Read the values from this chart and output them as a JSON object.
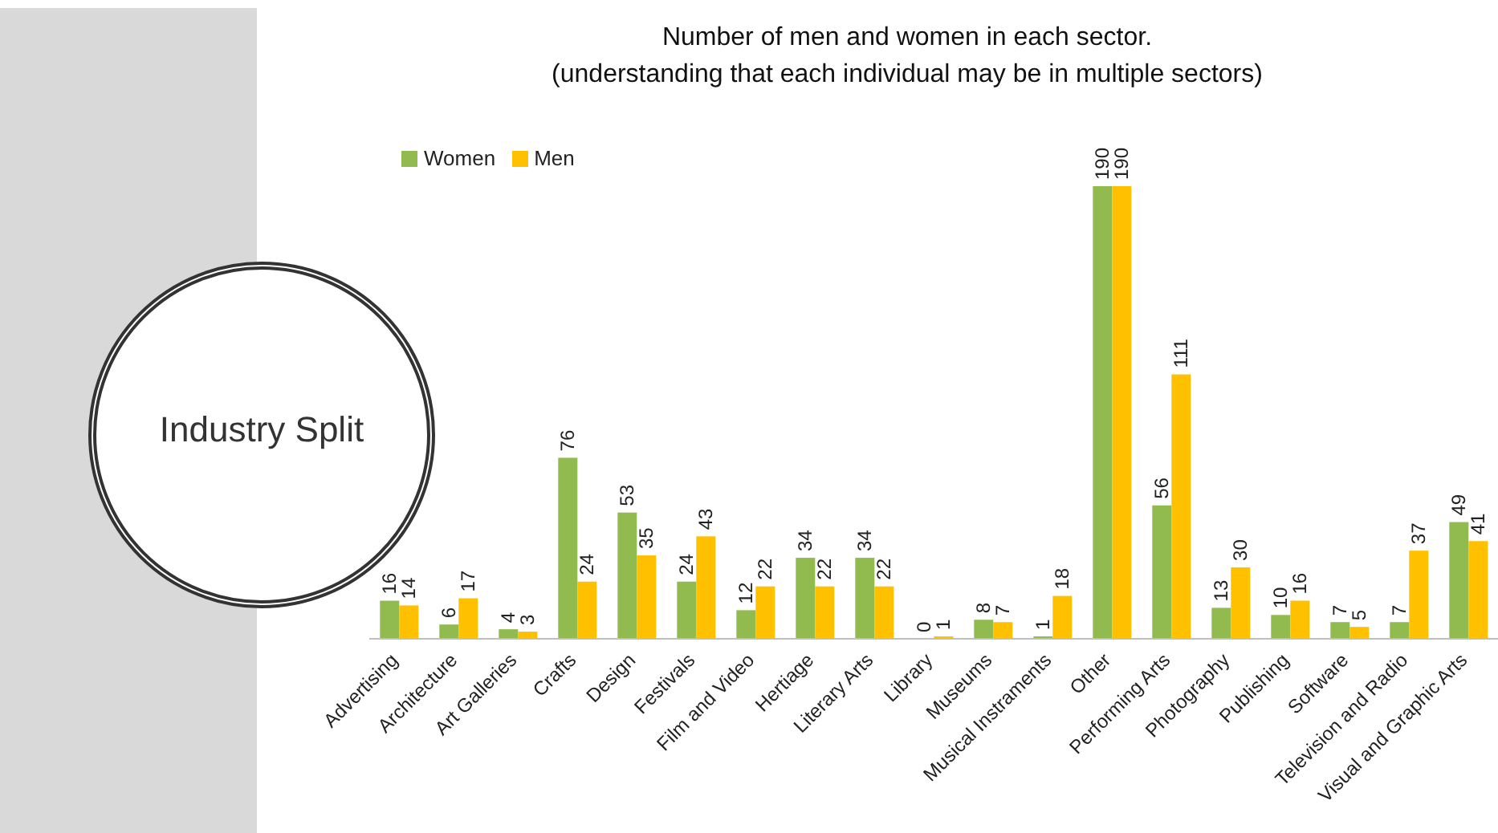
{
  "chart_data": {
    "type": "bar",
    "title": "Number of men and women in each sector.",
    "subtitle": "(understanding that each individual may be in multiple sectors)",
    "annotations": [
      "Industry Split"
    ],
    "categories": [
      "Advertising",
      "Architecture",
      "Art Galleries",
      "Crafts",
      "Design",
      "Festivals",
      "Film and Video",
      "Hertiage",
      "Literary Arts",
      "Library",
      "Museums",
      "Musical Instraments",
      "Other",
      "Performing Arts",
      "Photography",
      "Publishing",
      "Software",
      "Television and Radio",
      "Visual and Graphic Arts"
    ],
    "series": [
      {
        "name": "Women",
        "color": "#92bb4f",
        "values": [
          16,
          6,
          4,
          76,
          53,
          24,
          12,
          34,
          34,
          0,
          8,
          1,
          190,
          56,
          13,
          10,
          7,
          7,
          49
        ]
      },
      {
        "name": "Men",
        "color": "#ffc000",
        "values": [
          14,
          17,
          3,
          24,
          35,
          43,
          22,
          22,
          22,
          1,
          7,
          18,
          190,
          111,
          30,
          16,
          5,
          37,
          41
        ]
      }
    ],
    "data_labels": true,
    "legend": "top left",
    "grid": false
  }
}
